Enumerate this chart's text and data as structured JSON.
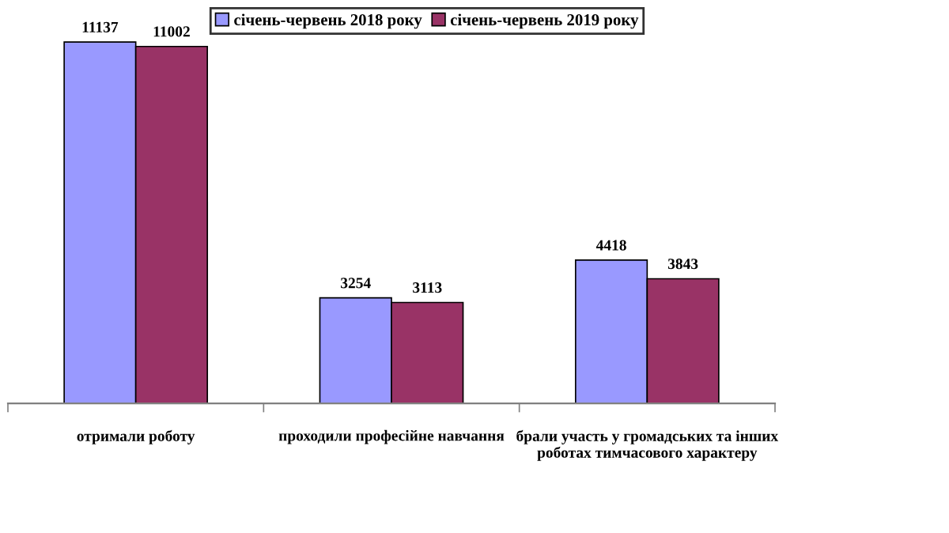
{
  "chart_data": {
    "type": "bar",
    "categories": [
      "отримали роботу",
      "проходили професійне навчання",
      "брали участь у громадських та інших роботах тимчасового характеру"
    ],
    "series": [
      {
        "name": "січень-червень 2018 року",
        "color": "#9999ff",
        "values": [
          11137,
          3254,
          4418
        ]
      },
      {
        "name": "січень-червень 2019 року",
        "color": "#993366",
        "values": [
          11002,
          3113,
          3843
        ]
      }
    ],
    "data_labels": true,
    "legend": "top",
    "grid": false
  }
}
